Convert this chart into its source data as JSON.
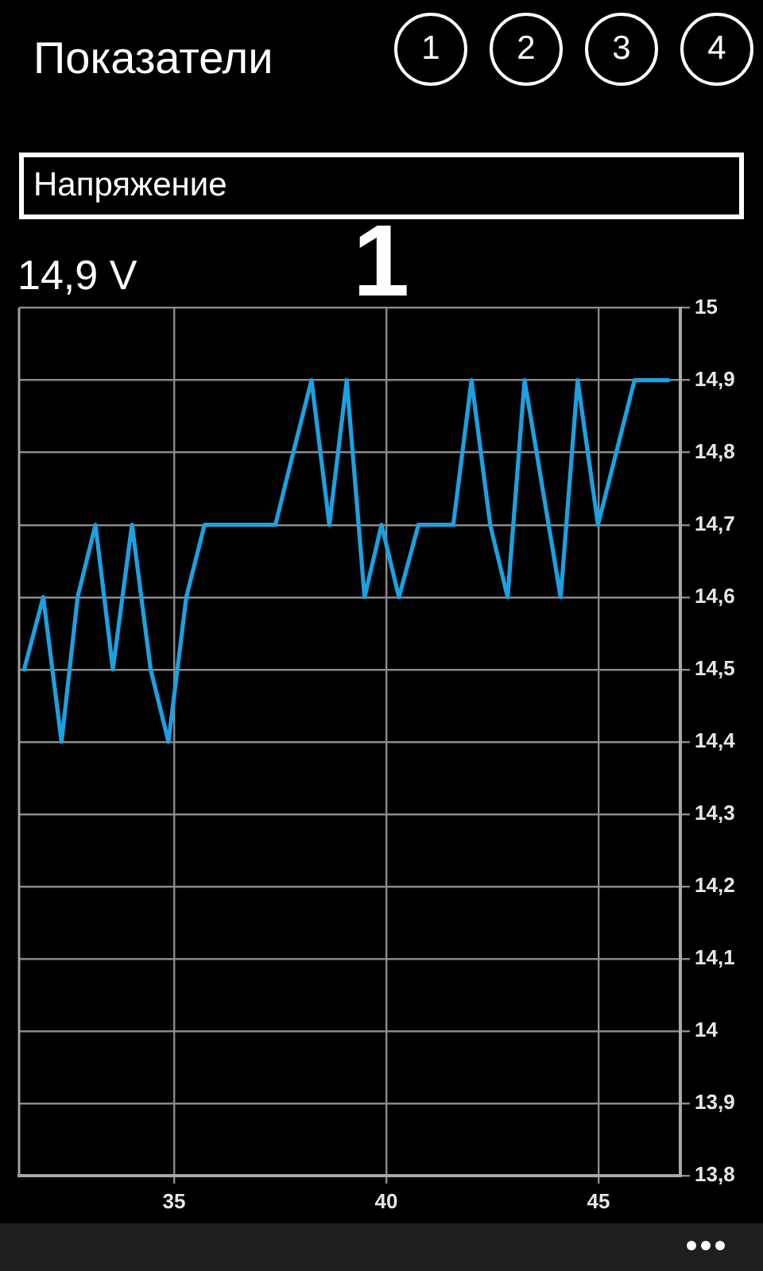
{
  "chart_data": {
    "type": "line",
    "title": "Показатели",
    "subtitle": "Напряжение",
    "annotations": [
      "1",
      "2",
      "3",
      "4",
      "14,9 V",
      "1"
    ],
    "x": [
      31.47,
      31.92,
      32.35,
      32.73,
      33.15,
      33.56,
      34.01,
      34.45,
      34.87,
      35.29,
      35.72,
      36.14,
      36.56,
      36.97,
      37.39,
      37.81,
      38.24,
      38.66,
      39.07,
      39.49,
      39.89,
      40.3,
      40.76,
      41.16,
      41.58,
      42.01,
      42.45,
      42.86,
      43.26,
      44.11,
      44.51,
      44.99,
      45.85,
      46.26,
      46.64
    ],
    "values": [
      14.5,
      14.6,
      14.4,
      14.6,
      14.7,
      14.5,
      14.7,
      14.5,
      14.4,
      14.6,
      14.7,
      14.7,
      14.7,
      14.7,
      14.7,
      14.8,
      14.9,
      14.7,
      14.9,
      14.6,
      14.7,
      14.6,
      14.7,
      14.7,
      14.7,
      14.9,
      14.7,
      14.6,
      14.9,
      14.6,
      14.9,
      14.7,
      14.9,
      14.9,
      14.9
    ],
    "color": "#1ba1e2",
    "xlim": [
      31.35,
      46.93
    ],
    "xticks": [
      35,
      40,
      45
    ],
    "ylim": [
      13.8,
      15
    ],
    "yticks": [
      {
        "value": 13.8,
        "label": "13,8"
      },
      {
        "value": 13.9,
        "label": "13,9"
      },
      14,
      {
        "value": 14.1,
        "label": "14,1"
      },
      {
        "value": 14.2,
        "label": "14,2"
      },
      {
        "value": 14.3,
        "label": "14,3"
      },
      {
        "value": 14.4,
        "label": "14,4"
      },
      {
        "value": 14.5,
        "label": "14,5"
      },
      {
        "value": 14.6,
        "label": "14,6"
      },
      {
        "value": 14.7,
        "label": "14,7"
      },
      {
        "value": 14.8,
        "label": "14,8"
      },
      {
        "value": 14.9,
        "label": "14,9"
      },
      15
    ],
    "grid": true
  }
}
